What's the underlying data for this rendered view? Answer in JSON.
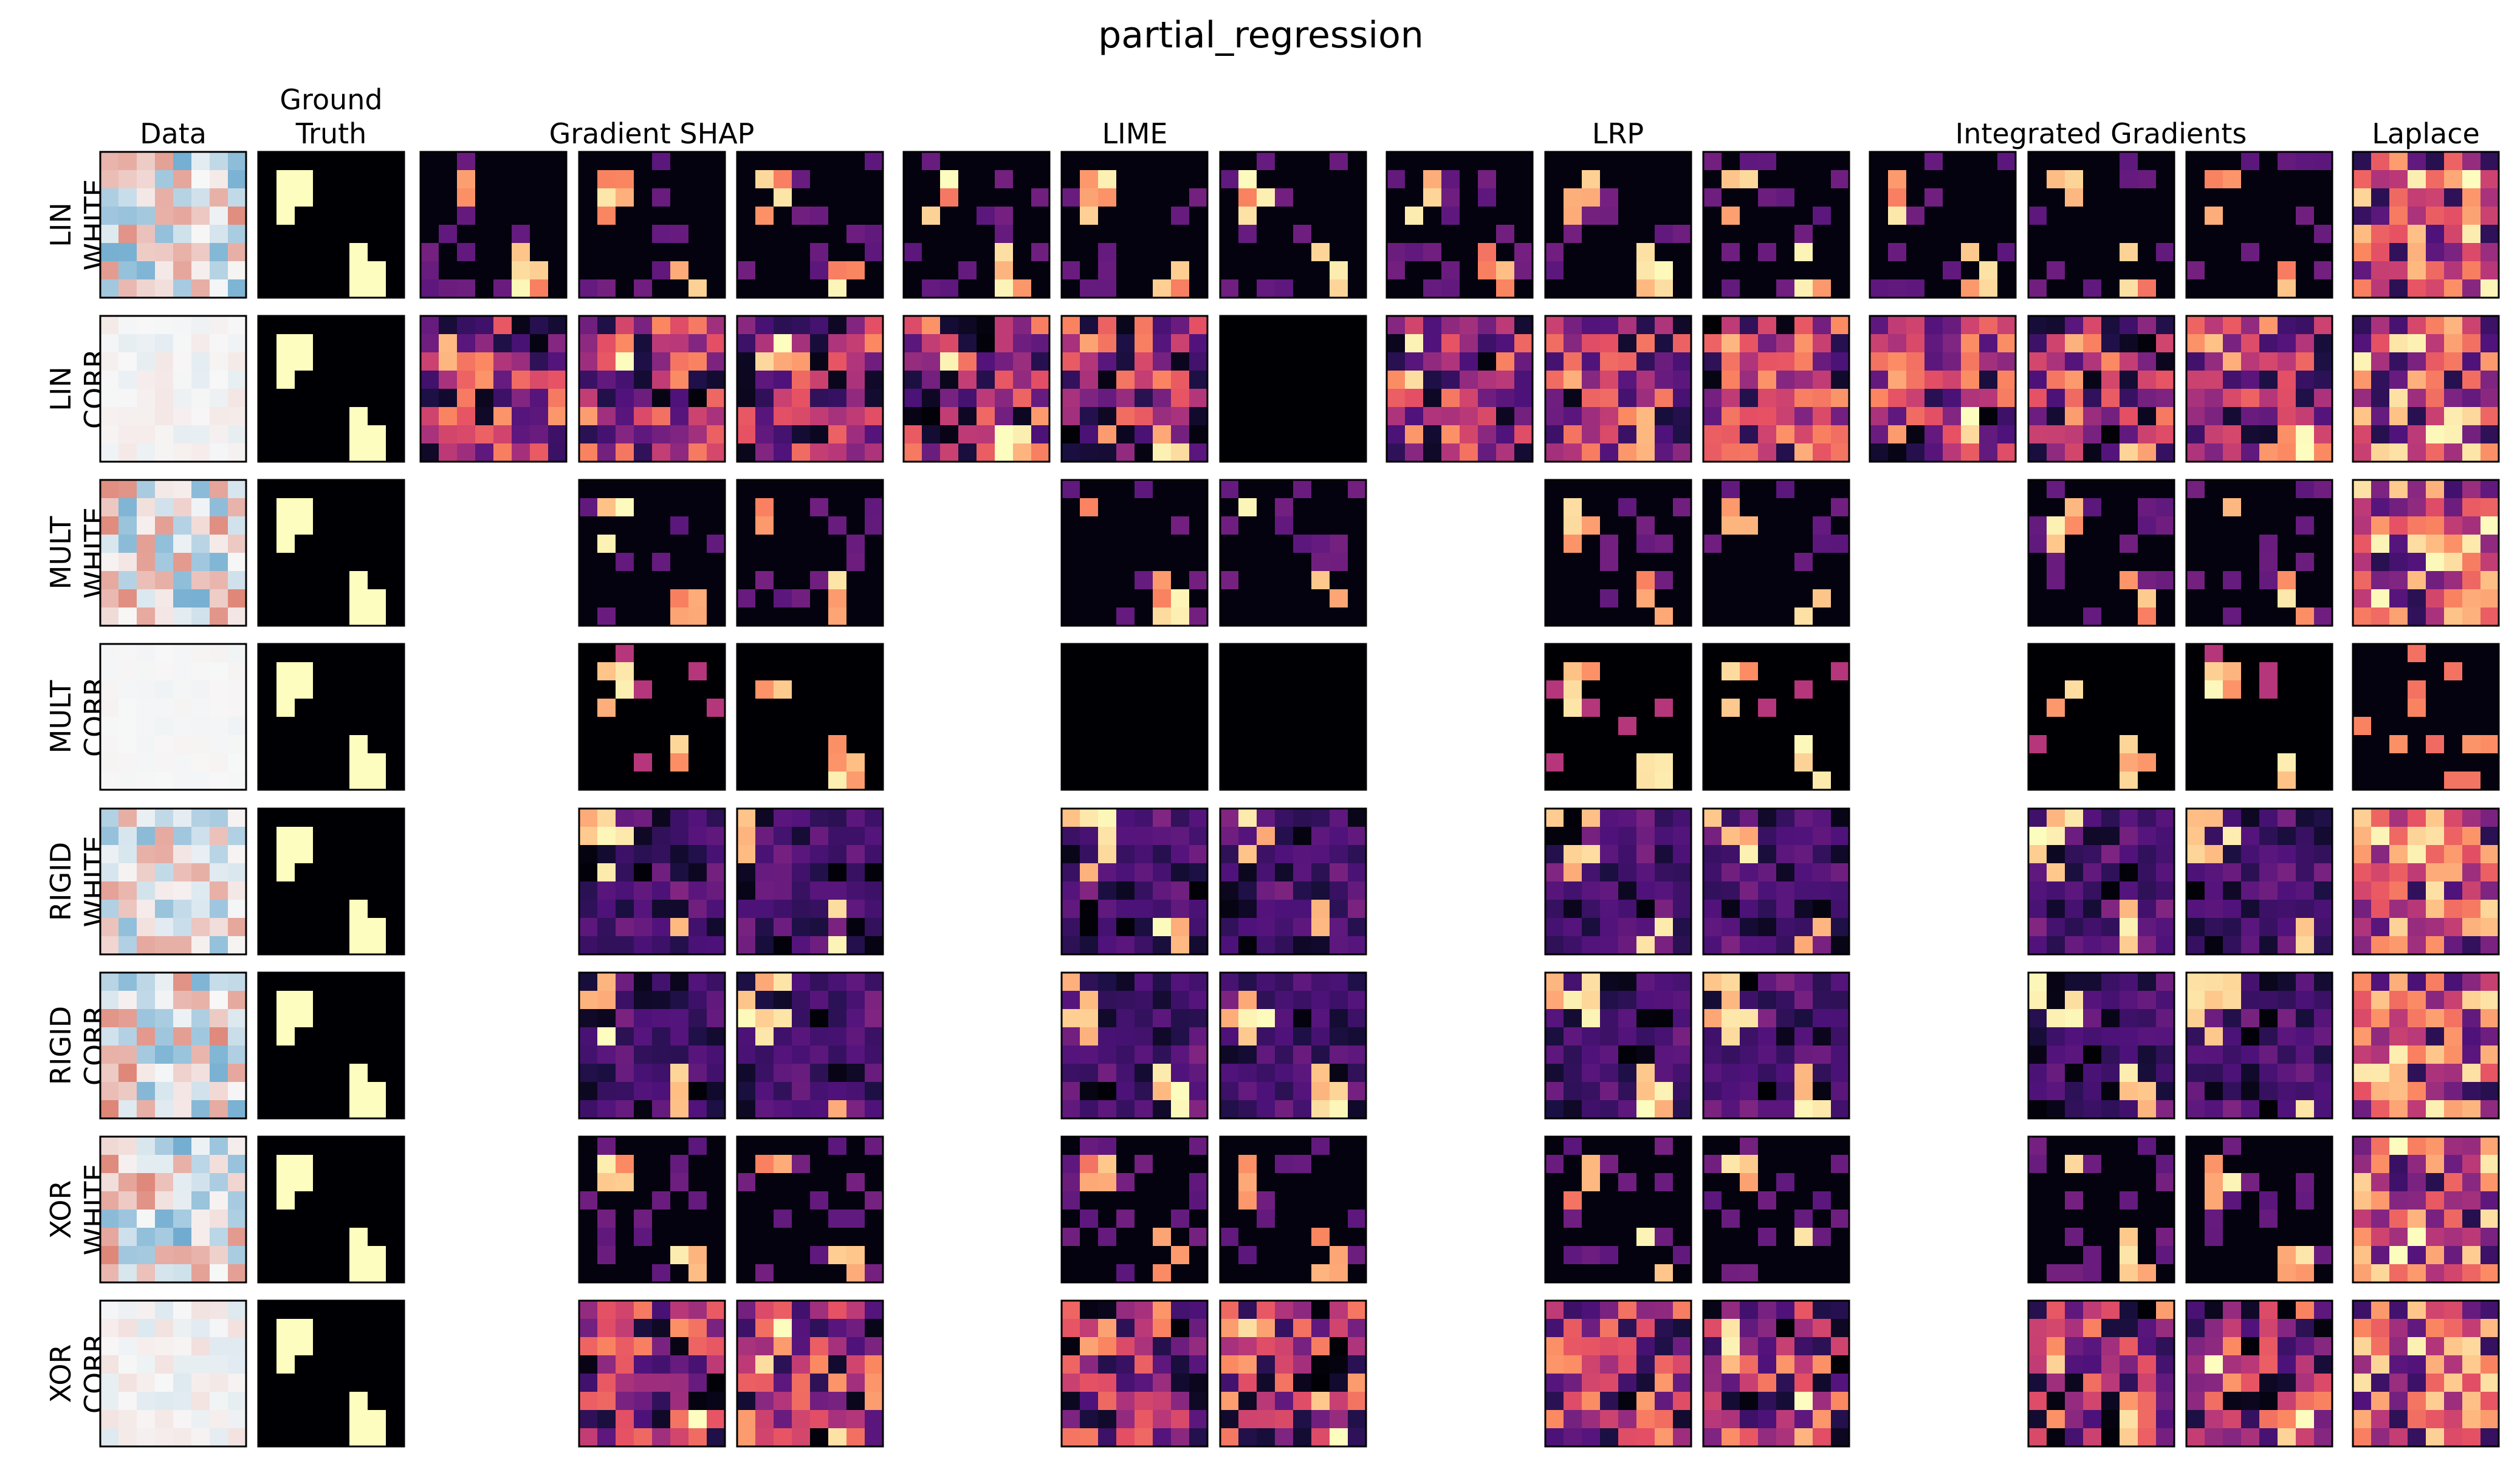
{
  "chart_data": {
    "type": "heatmap",
    "title": "partial_regression",
    "grid_size": 8,
    "colormaps": {
      "data": "RdBu_r",
      "attribution": "magma"
    },
    "columns": [
      {
        "key": "data",
        "header": "Data",
        "panels": 1
      },
      {
        "key": "gt",
        "header": "Ground\nTruth",
        "panels": 1
      },
      {
        "key": "gshap",
        "header": "Gradient SHAP",
        "panels": 3
      },
      {
        "key": "lime",
        "header": "LIME",
        "panels": 3
      },
      {
        "key": "lrp",
        "header": "LRP",
        "panels": 3
      },
      {
        "key": "ig",
        "header": "Integrated Gradients",
        "panels": 3
      },
      {
        "key": "laplace",
        "header": "Laplace",
        "panels": 1
      }
    ],
    "rows": [
      {
        "label": "LIN\nWHITE",
        "data_intensity": 1.0,
        "model_panels_present": [
          true,
          true,
          true
        ],
        "attr_style": "sparse"
      },
      {
        "label": "LIN\nCORR",
        "data_intensity": 0.15,
        "model_panels_present": [
          true,
          true,
          true
        ],
        "attr_style": "dense"
      },
      {
        "label": "MULT\nWHITE",
        "data_intensity": 1.0,
        "model_panels_present": [
          false,
          true,
          true
        ],
        "attr_style": "sparse"
      },
      {
        "label": "MULT\nCORR",
        "data_intensity": 0.05,
        "model_panels_present": [
          false,
          true,
          true
        ],
        "attr_style": "pattern"
      },
      {
        "label": "RIGID\nWHITE",
        "data_intensity": 0.8,
        "model_panels_present": [
          false,
          true,
          true
        ],
        "attr_style": "medium"
      },
      {
        "label": "RIGID\nCORR",
        "data_intensity": 1.0,
        "model_panels_present": [
          false,
          true,
          true
        ],
        "attr_style": "medium"
      },
      {
        "label": "XOR\nWHITE",
        "data_intensity": 1.0,
        "model_panels_present": [
          false,
          true,
          true
        ],
        "attr_style": "sparse"
      },
      {
        "label": "XOR\nCORR",
        "data_intensity": 0.2,
        "model_panels_present": [
          false,
          true,
          true
        ],
        "attr_style": "dense"
      }
    ],
    "ground_truth_cells": [
      [
        1,
        1
      ],
      [
        2,
        1
      ],
      [
        3,
        1
      ],
      [
        1,
        2
      ],
      [
        2,
        2
      ],
      [
        5,
        5
      ],
      [
        6,
        5
      ],
      [
        7,
        5
      ],
      [
        7,
        6
      ],
      [
        6,
        6
      ]
    ]
  }
}
